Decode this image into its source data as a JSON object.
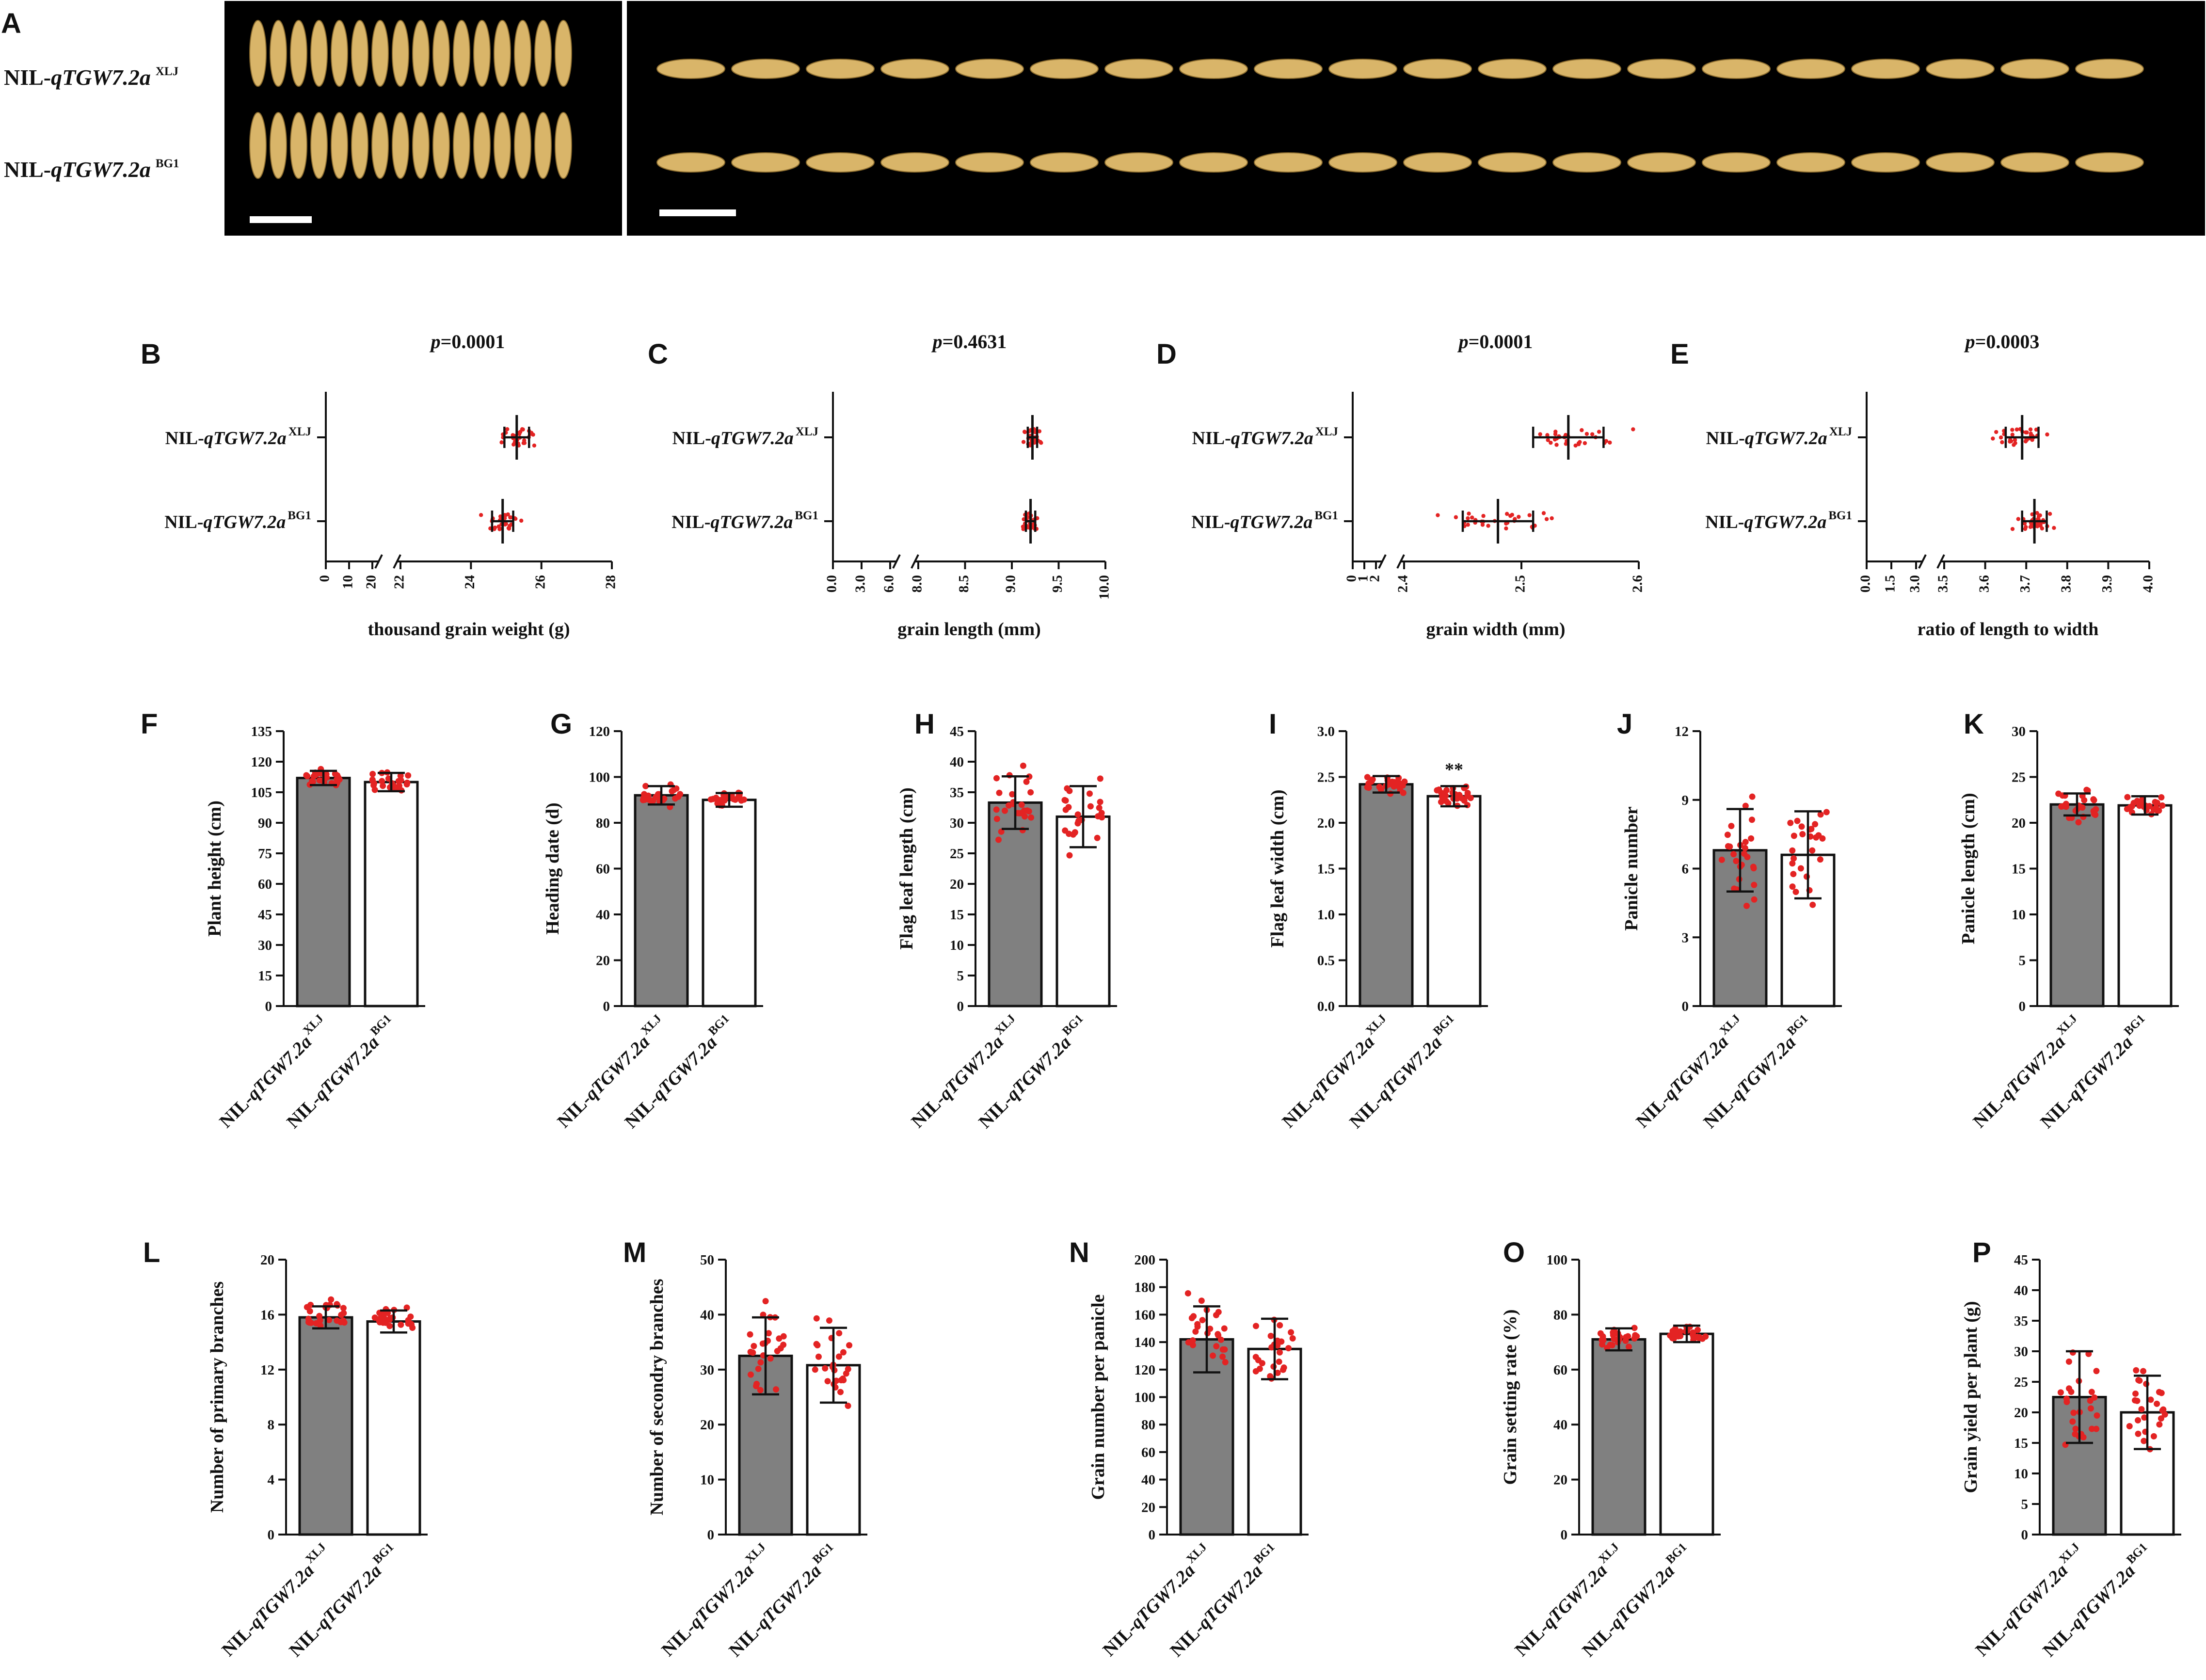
{
  "panel_a": {
    "label": "A",
    "rows": [
      {
        "prefix": "NIL-",
        "gene": "qTGW7.2a",
        "sup": "XLJ"
      },
      {
        "prefix": "NIL-",
        "gene": "qTGW7.2a",
        "sup": "BG1"
      }
    ],
    "seed_color": "#d9b569"
  },
  "genotypes": [
    {
      "prefix": "NIL-",
      "gene": "qTGW7.2a",
      "sup": "XLJ"
    },
    {
      "prefix": "NIL-",
      "gene": "qTGW7.2a",
      "sup": "BG1"
    }
  ],
  "colors": {
    "bar_xlj": "#808080",
    "bar_bg1": "#ffffff",
    "points": "#e32323"
  },
  "chart_data": [
    {
      "label": "B",
      "type": "scatter",
      "title": "p=0.0001",
      "xlabel": "thousand grain weight (g)",
      "axis_break": true,
      "ticks_low": [
        "0",
        "10",
        "20"
      ],
      "ticks_high": [
        "22",
        "24",
        "26",
        "28"
      ],
      "xlim_low": [
        0,
        20
      ],
      "xlim_high": [
        22,
        28
      ],
      "series": [
        {
          "mean": 25.3,
          "sd": 0.35,
          "spread": 0.9
        },
        {
          "mean": 24.9,
          "sd": 0.3,
          "spread": 0.8
        }
      ]
    },
    {
      "label": "C",
      "type": "scatter",
      "title": "p=0.4631",
      "xlabel": "grain length (mm)",
      "axis_break": true,
      "ticks_low": [
        "0.0",
        "3.0",
        "6.0"
      ],
      "ticks_high": [
        "8.0",
        "8.5",
        "9.0",
        "9.5",
        "10.0"
      ],
      "xlim_low": [
        0,
        6
      ],
      "xlim_high": [
        8,
        10
      ],
      "series": [
        {
          "mean": 9.22,
          "sd": 0.05,
          "spread": 0.14
        },
        {
          "mean": 9.2,
          "sd": 0.05,
          "spread": 0.12
        }
      ]
    },
    {
      "label": "D",
      "type": "scatter",
      "title": "p=0.0001",
      "xlabel": "grain width (mm)",
      "axis_break": true,
      "ticks_low": [
        "0",
        "1",
        "2"
      ],
      "ticks_high": [
        "2.4",
        "2.5",
        "2.6"
      ],
      "xlim_low": [
        0,
        2
      ],
      "xlim_high": [
        2.4,
        2.6
      ],
      "series": [
        {
          "mean": 2.54,
          "sd": 0.03,
          "spread": 0.06
        },
        {
          "mean": 2.48,
          "sd": 0.03,
          "spread": 0.07
        }
      ]
    },
    {
      "label": "E",
      "type": "scatter",
      "title": "p=0.0003",
      "xlabel": "ratio of length to width",
      "axis_break": true,
      "ticks_low": [
        "0.0",
        "1.5",
        "3.0"
      ],
      "ticks_high": [
        "3.5",
        "3.6",
        "3.7",
        "3.8",
        "3.9",
        "4.0"
      ],
      "xlim_low": [
        0,
        3
      ],
      "xlim_high": [
        3.5,
        4.0
      ],
      "series": [
        {
          "mean": 3.69,
          "sd": 0.04,
          "spread": 0.08
        },
        {
          "mean": 3.72,
          "sd": 0.03,
          "spread": 0.07
        }
      ]
    },
    {
      "label": "F",
      "type": "bar",
      "ylabel": "Plant height (cm)",
      "ylim": [
        0,
        135
      ],
      "yticks": [
        "0",
        "15",
        "30",
        "45",
        "60",
        "75",
        "90",
        "105",
        "120",
        "135"
      ],
      "values": [
        112,
        110
      ],
      "sd": [
        3.5,
        4.5
      ],
      "spread": [
        5,
        7
      ],
      "annotation": ""
    },
    {
      "label": "G",
      "type": "bar",
      "ylabel": "Heading date (d)",
      "ylim": [
        0,
        120
      ],
      "yticks": [
        "0",
        "20",
        "40",
        "60",
        "80",
        "100",
        "120"
      ],
      "values": [
        92,
        90
      ],
      "sd": [
        4,
        3
      ],
      "spread": [
        6,
        5
      ],
      "annotation": ""
    },
    {
      "label": "H",
      "type": "bar",
      "ylabel": "Flag leaf length (cm)",
      "ylim": [
        0,
        45
      ],
      "yticks": [
        "0",
        "5",
        "10",
        "15",
        "20",
        "25",
        "30",
        "35",
        "40",
        "45"
      ],
      "values": [
        33.3,
        31
      ],
      "sd": [
        4.3,
        5
      ],
      "spread": [
        9,
        9
      ],
      "annotation": ""
    },
    {
      "label": "I",
      "type": "bar",
      "ylabel": "Flag leaf width (cm)",
      "ylim": [
        0,
        3.0
      ],
      "yticks": [
        "0.0",
        "0.5",
        "1.0",
        "1.5",
        "2.0",
        "2.5",
        "3.0"
      ],
      "values": [
        2.42,
        2.29
      ],
      "sd": [
        0.09,
        0.11
      ],
      "spread": [
        0.15,
        0.17
      ],
      "annotation": "**"
    },
    {
      "label": "J",
      "type": "bar",
      "ylabel": "Panicle number",
      "ylim": [
        0,
        12
      ],
      "yticks": [
        "0",
        "3",
        "6",
        "9",
        "12"
      ],
      "values": [
        6.8,
        6.6
      ],
      "sd": [
        1.8,
        1.9
      ],
      "spread": [
        3.5,
        4.3
      ],
      "annotation": ""
    },
    {
      "label": "K",
      "type": "bar",
      "ylabel": "Panicle length (cm)",
      "ylim": [
        0,
        30
      ],
      "yticks": [
        "0",
        "5",
        "10",
        "15",
        "20",
        "25",
        "30"
      ],
      "values": [
        22,
        21.9
      ],
      "sd": [
        1.2,
        1.0
      ],
      "spread": [
        2.4,
        1.6
      ],
      "annotation": ""
    },
    {
      "label": "L",
      "type": "bar",
      "ylabel": "Number of primary branches",
      "ylim": [
        0,
        20
      ],
      "yticks": [
        "0",
        "4",
        "8",
        "12",
        "16",
        "20"
      ],
      "values": [
        15.8,
        15.5
      ],
      "sd": [
        0.8,
        0.8
      ],
      "spread": [
        1.8,
        1.4
      ],
      "annotation": ""
    },
    {
      "label": "M",
      "type": "bar",
      "ylabel": "Number of secondry branches",
      "ylim": [
        0,
        50
      ],
      "yticks": [
        "0",
        "10",
        "20",
        "30",
        "40",
        "50"
      ],
      "values": [
        32.5,
        30.8
      ],
      "sd": [
        7,
        6.8
      ],
      "spread": [
        13,
        12
      ],
      "annotation": ""
    },
    {
      "label": "N",
      "type": "bar",
      "ylabel": "Grain number per panicle",
      "ylim": [
        0,
        200
      ],
      "yticks": [
        "0",
        "20",
        "40",
        "60",
        "80",
        "100",
        "120",
        "140",
        "160",
        "180",
        "200"
      ],
      "values": [
        142,
        135
      ],
      "sd": [
        24,
        22
      ],
      "spread": [
        40,
        38
      ],
      "annotation": ""
    },
    {
      "label": "O",
      "type": "bar",
      "ylabel": "Grain setting rate (%)",
      "ylim": [
        0,
        100
      ],
      "yticks": [
        "0",
        "20",
        "40",
        "60",
        "80",
        "100"
      ],
      "values": [
        71,
        73
      ],
      "sd": [
        4,
        3
      ],
      "spread": [
        6,
        4
      ],
      "annotation": ""
    },
    {
      "label": "P",
      "type": "bar",
      "ylabel": "Grain yield per plant (g)",
      "ylim": [
        0,
        45
      ],
      "yticks": [
        "0",
        "5",
        "10",
        "15",
        "20",
        "25",
        "30",
        "35",
        "40",
        "45"
      ],
      "values": [
        22.5,
        20
      ],
      "sd": [
        7.5,
        6
      ],
      "spread": [
        12,
        10
      ],
      "annotation": ""
    }
  ]
}
